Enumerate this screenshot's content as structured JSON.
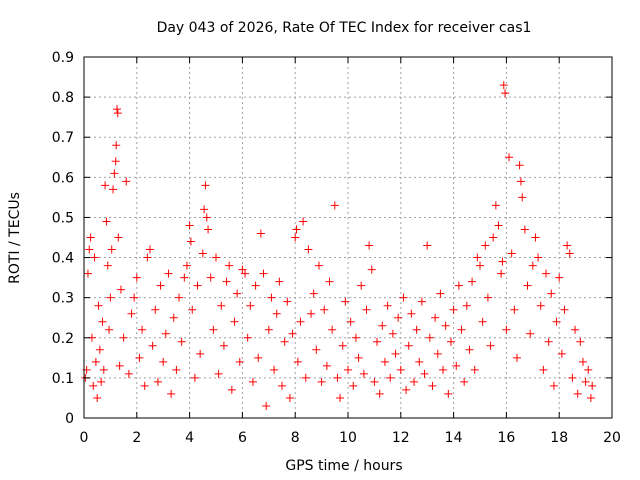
{
  "chart_data": {
    "type": "scatter",
    "title": "Day 043 of 2026, Rate Of TEC Index for receiver cas1",
    "xlabel": "GPS time / hours",
    "ylabel": "ROTI / TECUs",
    "xlim": [
      0,
      20
    ],
    "ylim": [
      0,
      0.9
    ],
    "xticks": [
      0,
      2,
      4,
      6,
      8,
      10,
      12,
      14,
      16,
      18,
      20
    ],
    "yticks": [
      0,
      0.1,
      0.2,
      0.3,
      0.4,
      0.5,
      0.6,
      0.7,
      0.8,
      0.9
    ],
    "xtick_labels": [
      "0",
      "2",
      "4",
      "6",
      "8",
      "10",
      "12",
      "14",
      "16",
      "18",
      "20"
    ],
    "ytick_labels": [
      "0",
      "0.1",
      "0.2",
      "0.3",
      "0.4",
      "0.5",
      "0.6",
      "0.7",
      "0.8",
      "0.9"
    ],
    "grid": true,
    "marker": "plus",
    "color": "#ff0000",
    "series": [
      {
        "points": [
          [
            0.05,
            0.1
          ],
          [
            0.1,
            0.12
          ],
          [
            0.15,
            0.36
          ],
          [
            0.2,
            0.42
          ],
          [
            0.25,
            0.45
          ],
          [
            0.3,
            0.2
          ],
          [
            0.35,
            0.08
          ],
          [
            0.4,
            0.4
          ],
          [
            0.45,
            0.14
          ],
          [
            0.5,
            0.05
          ],
          [
            0.55,
            0.28
          ],
          [
            0.6,
            0.17
          ],
          [
            0.65,
            0.09
          ],
          [
            0.7,
            0.24
          ],
          [
            0.75,
            0.12
          ],
          [
            0.8,
            0.58
          ],
          [
            0.85,
            0.49
          ],
          [
            0.9,
            0.38
          ],
          [
            0.95,
            0.22
          ],
          [
            1.0,
            0.3
          ],
          [
            1.05,
            0.42
          ],
          [
            1.1,
            0.57
          ],
          [
            1.15,
            0.61
          ],
          [
            1.2,
            0.64
          ],
          [
            1.22,
            0.68
          ],
          [
            1.25,
            0.77
          ],
          [
            1.28,
            0.76
          ],
          [
            1.3,
            0.45
          ],
          [
            1.35,
            0.13
          ],
          [
            1.4,
            0.32
          ],
          [
            1.5,
            0.2
          ],
          [
            1.6,
            0.59
          ],
          [
            1.7,
            0.11
          ],
          [
            1.8,
            0.26
          ],
          [
            1.9,
            0.3
          ],
          [
            2.0,
            0.35
          ],
          [
            2.1,
            0.15
          ],
          [
            2.2,
            0.22
          ],
          [
            2.3,
            0.08
          ],
          [
            2.4,
            0.4
          ],
          [
            2.5,
            0.42
          ],
          [
            2.6,
            0.18
          ],
          [
            2.7,
            0.27
          ],
          [
            2.8,
            0.09
          ],
          [
            2.9,
            0.33
          ],
          [
            3.0,
            0.14
          ],
          [
            3.1,
            0.21
          ],
          [
            3.2,
            0.36
          ],
          [
            3.3,
            0.06
          ],
          [
            3.4,
            0.25
          ],
          [
            3.5,
            0.12
          ],
          [
            3.6,
            0.3
          ],
          [
            3.7,
            0.19
          ],
          [
            3.8,
            0.35
          ],
          [
            3.9,
            0.38
          ],
          [
            4.0,
            0.48
          ],
          [
            4.05,
            0.44
          ],
          [
            4.1,
            0.27
          ],
          [
            4.2,
            0.1
          ],
          [
            4.3,
            0.33
          ],
          [
            4.4,
            0.16
          ],
          [
            4.5,
            0.41
          ],
          [
            4.55,
            0.52
          ],
          [
            4.6,
            0.58
          ],
          [
            4.65,
            0.5
          ],
          [
            4.7,
            0.47
          ],
          [
            4.8,
            0.35
          ],
          [
            4.9,
            0.22
          ],
          [
            5.0,
            0.4
          ],
          [
            5.1,
            0.11
          ],
          [
            5.2,
            0.28
          ],
          [
            5.3,
            0.18
          ],
          [
            5.4,
            0.34
          ],
          [
            5.5,
            0.38
          ],
          [
            5.6,
            0.07
          ],
          [
            5.7,
            0.24
          ],
          [
            5.8,
            0.31
          ],
          [
            5.9,
            0.14
          ],
          [
            6.0,
            0.37
          ],
          [
            6.1,
            0.36
          ],
          [
            6.2,
            0.2
          ],
          [
            6.3,
            0.28
          ],
          [
            6.4,
            0.09
          ],
          [
            6.5,
            0.33
          ],
          [
            6.6,
            0.15
          ],
          [
            6.7,
            0.46
          ],
          [
            6.8,
            0.36
          ],
          [
            6.9,
            0.03
          ],
          [
            7.0,
            0.22
          ],
          [
            7.1,
            0.3
          ],
          [
            7.2,
            0.12
          ],
          [
            7.3,
            0.26
          ],
          [
            7.4,
            0.34
          ],
          [
            7.5,
            0.08
          ],
          [
            7.6,
            0.19
          ],
          [
            7.7,
            0.29
          ],
          [
            7.8,
            0.05
          ],
          [
            7.9,
            0.21
          ],
          [
            8.0,
            0.45
          ],
          [
            8.05,
            0.47
          ],
          [
            8.1,
            0.14
          ],
          [
            8.2,
            0.24
          ],
          [
            8.3,
            0.49
          ],
          [
            8.4,
            0.1
          ],
          [
            8.5,
            0.42
          ],
          [
            8.6,
            0.26
          ],
          [
            8.7,
            0.31
          ],
          [
            8.8,
            0.17
          ],
          [
            8.9,
            0.38
          ],
          [
            9.0,
            0.09
          ],
          [
            9.1,
            0.27
          ],
          [
            9.2,
            0.13
          ],
          [
            9.3,
            0.34
          ],
          [
            9.4,
            0.22
          ],
          [
            9.5,
            0.53
          ],
          [
            9.6,
            0.1
          ],
          [
            9.7,
            0.05
          ],
          [
            9.8,
            0.18
          ],
          [
            9.9,
            0.29
          ],
          [
            10.0,
            0.12
          ],
          [
            10.1,
            0.24
          ],
          [
            10.2,
            0.08
          ],
          [
            10.3,
            0.2
          ],
          [
            10.4,
            0.15
          ],
          [
            10.5,
            0.33
          ],
          [
            10.6,
            0.11
          ],
          [
            10.7,
            0.27
          ],
          [
            10.8,
            0.43
          ],
          [
            10.9,
            0.37
          ],
          [
            11.0,
            0.09
          ],
          [
            11.1,
            0.19
          ],
          [
            11.2,
            0.06
          ],
          [
            11.3,
            0.23
          ],
          [
            11.4,
            0.14
          ],
          [
            11.5,
            0.28
          ],
          [
            11.6,
            0.1
          ],
          [
            11.7,
            0.21
          ],
          [
            11.8,
            0.16
          ],
          [
            11.9,
            0.25
          ],
          [
            12.0,
            0.12
          ],
          [
            12.1,
            0.3
          ],
          [
            12.2,
            0.07
          ],
          [
            12.3,
            0.18
          ],
          [
            12.4,
            0.26
          ],
          [
            12.5,
            0.09
          ],
          [
            12.6,
            0.22
          ],
          [
            12.7,
            0.14
          ],
          [
            12.8,
            0.29
          ],
          [
            12.9,
            0.11
          ],
          [
            13.0,
            0.43
          ],
          [
            13.1,
            0.2
          ],
          [
            13.2,
            0.08
          ],
          [
            13.3,
            0.25
          ],
          [
            13.4,
            0.16
          ],
          [
            13.5,
            0.31
          ],
          [
            13.6,
            0.12
          ],
          [
            13.7,
            0.23
          ],
          [
            13.8,
            0.06
          ],
          [
            13.9,
            0.19
          ],
          [
            14.0,
            0.27
          ],
          [
            14.1,
            0.13
          ],
          [
            14.2,
            0.33
          ],
          [
            14.3,
            0.22
          ],
          [
            14.4,
            0.09
          ],
          [
            14.5,
            0.28
          ],
          [
            14.6,
            0.17
          ],
          [
            14.7,
            0.34
          ],
          [
            14.8,
            0.12
          ],
          [
            14.9,
            0.4
          ],
          [
            15.0,
            0.38
          ],
          [
            15.1,
            0.24
          ],
          [
            15.2,
            0.43
          ],
          [
            15.3,
            0.3
          ],
          [
            15.4,
            0.18
          ],
          [
            15.5,
            0.45
          ],
          [
            15.6,
            0.53
          ],
          [
            15.7,
            0.48
          ],
          [
            15.8,
            0.36
          ],
          [
            15.85,
            0.39
          ],
          [
            15.9,
            0.83
          ],
          [
            15.95,
            0.81
          ],
          [
            16.0,
            0.22
          ],
          [
            16.1,
            0.65
          ],
          [
            16.2,
            0.41
          ],
          [
            16.3,
            0.27
          ],
          [
            16.4,
            0.15
          ],
          [
            16.5,
            0.63
          ],
          [
            16.55,
            0.59
          ],
          [
            16.6,
            0.55
          ],
          [
            16.7,
            0.47
          ],
          [
            16.8,
            0.33
          ],
          [
            16.9,
            0.21
          ],
          [
            17.0,
            0.38
          ],
          [
            17.1,
            0.45
          ],
          [
            17.2,
            0.4
          ],
          [
            17.3,
            0.28
          ],
          [
            17.4,
            0.12
          ],
          [
            17.5,
            0.36
          ],
          [
            17.6,
            0.19
          ],
          [
            17.7,
            0.31
          ],
          [
            17.8,
            0.08
          ],
          [
            17.9,
            0.24
          ],
          [
            18.0,
            0.35
          ],
          [
            18.1,
            0.16
          ],
          [
            18.2,
            0.27
          ],
          [
            18.3,
            0.43
          ],
          [
            18.4,
            0.41
          ],
          [
            18.5,
            0.1
          ],
          [
            18.6,
            0.22
          ],
          [
            18.7,
            0.06
          ],
          [
            18.8,
            0.19
          ],
          [
            18.9,
            0.14
          ],
          [
            19.0,
            0.09
          ],
          [
            19.1,
            0.12
          ],
          [
            19.2,
            0.05
          ],
          [
            19.25,
            0.08
          ]
        ]
      }
    ]
  }
}
